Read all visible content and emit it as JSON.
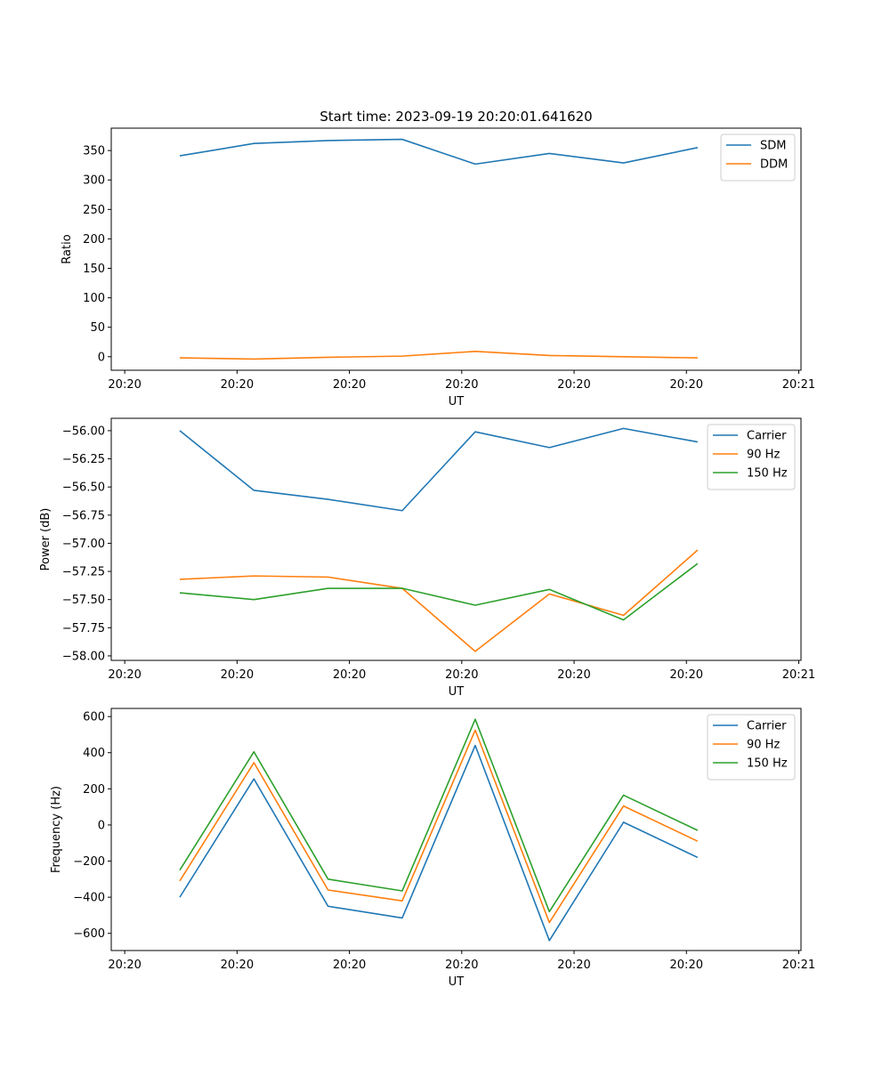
{
  "figure": {
    "title": "Start time: 2023-09-19 20:20:01.641620"
  },
  "chart_data": [
    {
      "type": "line",
      "title": "Start time: 2023-09-19 20:20:01.641620",
      "xlabel": "UT",
      "ylabel": "Ratio",
      "x_tick_labels": [
        "20:20",
        "20:20",
        "20:20",
        "20:20",
        "20:20",
        "20:20",
        "20:21"
      ],
      "x_tick_pos": [
        0,
        1,
        2,
        3,
        4,
        5,
        6
      ],
      "x": [
        0.49,
        1.15,
        1.81,
        2.47,
        3.12,
        3.78,
        4.44,
        5.1
      ],
      "xlim": [
        -0.12,
        6.02
      ],
      "ylim": [
        -23,
        388
      ],
      "yticks": [
        0,
        50,
        100,
        150,
        200,
        250,
        300,
        350
      ],
      "legend_loc": "upper right",
      "series": [
        {
          "name": "SDM",
          "color": "#1f77b4",
          "values": [
            341,
            362,
            367,
            369,
            327,
            345,
            329,
            355
          ]
        },
        {
          "name": "DDM",
          "color": "#ff7f0e",
          "values": [
            -2,
            -4,
            -1,
            1,
            9,
            2,
            0,
            -2
          ]
        }
      ]
    },
    {
      "type": "line",
      "xlabel": "UT",
      "ylabel": "Power (dB)",
      "x_tick_labels": [
        "20:20",
        "20:20",
        "20:20",
        "20:20",
        "20:20",
        "20:20",
        "20:21"
      ],
      "x_tick_pos": [
        0,
        1,
        2,
        3,
        4,
        5,
        6
      ],
      "x": [
        0.49,
        1.15,
        1.81,
        2.47,
        3.12,
        3.78,
        4.44,
        5.1
      ],
      "xlim": [
        -0.12,
        6.02
      ],
      "ylim": [
        -58.04,
        -55.89
      ],
      "yticks": [
        -58.0,
        -57.75,
        -57.5,
        -57.25,
        -57.0,
        -56.75,
        -56.5,
        -56.25,
        -56.0
      ],
      "ytick_labels": [
        "−58.00",
        "−57.75",
        "−57.50",
        "−57.25",
        "−57.00",
        "−56.75",
        "−56.50",
        "−56.25",
        "−56.00"
      ],
      "legend_loc": "upper right",
      "series": [
        {
          "name": "Carrier",
          "color": "#1f77b4",
          "values": [
            -56.0,
            -56.53,
            -56.61,
            -56.71,
            -56.01,
            -56.15,
            -55.98,
            -56.1
          ]
        },
        {
          "name": "90 Hz",
          "color": "#ff7f0e",
          "values": [
            -57.32,
            -57.29,
            -57.3,
            -57.4,
            -57.96,
            -57.45,
            -57.64,
            -57.06
          ]
        },
        {
          "name": "150 Hz",
          "color": "#2ca02c",
          "values": [
            -57.44,
            -57.5,
            -57.4,
            -57.4,
            -57.55,
            -57.41,
            -57.68,
            -57.18
          ]
        }
      ]
    },
    {
      "type": "line",
      "xlabel": "UT",
      "ylabel": "Frequency (Hz)",
      "x_tick_labels": [
        "20:20",
        "20:20",
        "20:20",
        "20:20",
        "20:20",
        "20:20",
        "20:21"
      ],
      "x_tick_pos": [
        0,
        1,
        2,
        3,
        4,
        5,
        6
      ],
      "x": [
        0.49,
        1.15,
        1.81,
        2.47,
        3.12,
        3.78,
        4.44,
        5.1
      ],
      "xlim": [
        -0.12,
        6.02
      ],
      "ylim": [
        -695,
        645
      ],
      "yticks": [
        -600,
        -400,
        -200,
        0,
        200,
        400,
        600
      ],
      "ytick_labels": [
        "−600",
        "−400",
        "−200",
        "0",
        "200",
        "400",
        "600"
      ],
      "legend_loc": "upper right",
      "series": [
        {
          "name": "Carrier",
          "color": "#1f77b4",
          "values": [
            -400,
            255,
            -450,
            -515,
            440,
            -640,
            15,
            -180
          ]
        },
        {
          "name": "90 Hz",
          "color": "#ff7f0e",
          "values": [
            -310,
            345,
            -360,
            -420,
            525,
            -540,
            105,
            -90
          ]
        },
        {
          "name": "150 Hz",
          "color": "#2ca02c",
          "values": [
            -250,
            405,
            -300,
            -365,
            585,
            -480,
            165,
            -30
          ]
        }
      ]
    }
  ]
}
